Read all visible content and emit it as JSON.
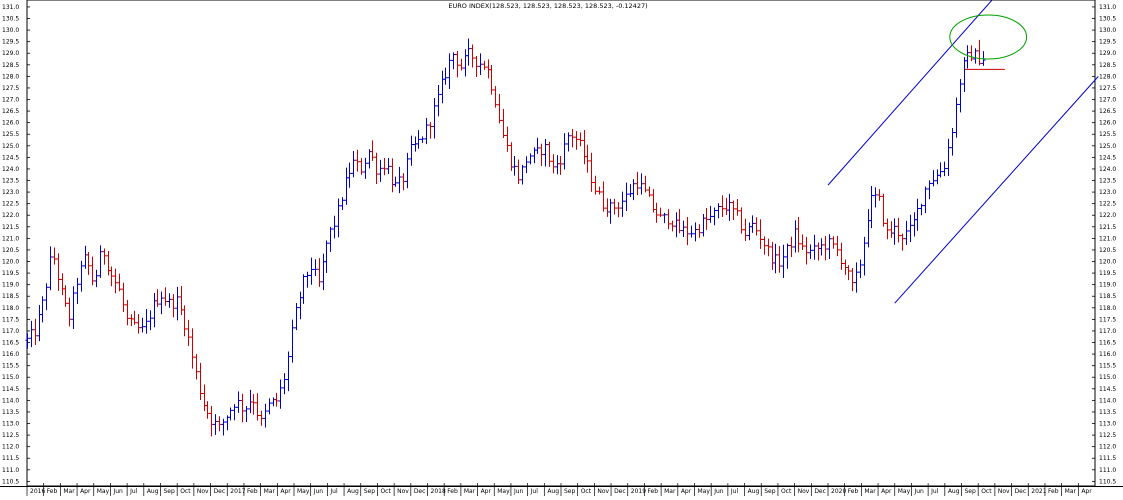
{
  "chart_data": {
    "type": "ohlc-bar",
    "title": "EURO INDEX(128.523, 128.523, 128.523, 128.523, -0.12427)",
    "xlabel": "",
    "ylabel": "",
    "ylim": [
      110.5,
      131.5
    ],
    "y_ticks": [
      110.5,
      111.0,
      111.5,
      112.0,
      112.5,
      113.0,
      113.5,
      114.0,
      114.5,
      115.0,
      115.5,
      116.0,
      116.5,
      117.0,
      117.5,
      118.0,
      118.5,
      119.0,
      119.5,
      120.0,
      120.5,
      121.0,
      121.5,
      122.0,
      122.5,
      123.0,
      123.5,
      124.0,
      124.5,
      125.0,
      125.5,
      126.0,
      126.5,
      127.0,
      127.5,
      128.0,
      128.5,
      129.0,
      129.5,
      130.0,
      130.5,
      131.0
    ],
    "y_tick_labels": [
      "110.5",
      "111.0",
      "111.5",
      "112.0",
      "112.5",
      "113.0",
      "113.5",
      "114.0",
      "114.5",
      "115.0",
      "115.5",
      "116.0",
      "116.5",
      "117.0",
      "117.5",
      "118.0",
      "118.5",
      "119.0",
      "119.5",
      "120.0",
      "120.5",
      "121.0",
      "121.5",
      "122.0",
      "122.5",
      "123.0",
      "123.5",
      "124.0",
      "124.5",
      "125.0",
      "125.5",
      "126.0",
      "126.5",
      "127.0",
      "127.5",
      "128.0",
      "128.5",
      "129.0",
      "129.5",
      "130.0",
      "130.5",
      "131.0"
    ],
    "x_tick_labels": [
      "2016",
      "Feb",
      "Mar",
      "Apr",
      "May",
      "Jun",
      "Jul",
      "Aug",
      "Sep",
      "Oct",
      "Nov",
      "Dec",
      "2017",
      "Feb",
      "Mar",
      "Apr",
      "May",
      "Jun",
      "Jul",
      "Aug",
      "Sep",
      "Oct",
      "Nov",
      "Dec",
      "2018",
      "Feb",
      "Mar",
      "Apr",
      "May",
      "Jun",
      "Jul",
      "Aug",
      "Sep",
      "Oct",
      "Nov",
      "Dec",
      "2019",
      "Feb",
      "Mar",
      "Apr",
      "May",
      "Jun",
      "Jul",
      "Aug",
      "Sep",
      "Oct",
      "Nov",
      "Dec",
      "2020",
      "Feb",
      "Mar",
      "Apr",
      "May",
      "Jun",
      "Jul",
      "Aug",
      "Sep",
      "Oct",
      "Nov",
      "Dec",
      "2021",
      "Feb",
      "Mar",
      "Apr"
    ],
    "x_range_months": [
      0,
      64
    ],
    "anchors": [
      [
        0.0,
        116.6
      ],
      [
        0.5,
        117.0
      ],
      [
        1.0,
        118.4
      ],
      [
        1.5,
        120.5
      ],
      [
        2.0,
        118.8
      ],
      [
        2.5,
        117.5
      ],
      [
        3.0,
        119.2
      ],
      [
        3.5,
        120.2
      ],
      [
        4.0,
        119.0
      ],
      [
        4.5,
        120.6
      ],
      [
        5.0,
        119.5
      ],
      [
        5.5,
        118.8
      ],
      [
        6.0,
        117.4
      ],
      [
        6.5,
        117.1
      ],
      [
        7.0,
        117.0
      ],
      [
        7.5,
        118.0
      ],
      [
        8.0,
        118.6
      ],
      [
        8.5,
        118.2
      ],
      [
        9.0,
        118.3
      ],
      [
        9.5,
        117.2
      ],
      [
        10.0,
        115.5
      ],
      [
        10.5,
        114.0
      ],
      [
        11.0,
        113.2
      ],
      [
        11.5,
        112.8
      ],
      [
        12.0,
        113.4
      ],
      [
        12.5,
        114.0
      ],
      [
        13.0,
        113.6
      ],
      [
        13.5,
        114.2
      ],
      [
        14.0,
        113.0
      ],
      [
        14.5,
        113.8
      ],
      [
        15.0,
        114.0
      ],
      [
        15.5,
        115.2
      ],
      [
        16.0,
        117.5
      ],
      [
        16.5,
        119.0
      ],
      [
        17.0,
        119.8
      ],
      [
        17.5,
        119.0
      ],
      [
        18.0,
        121.0
      ],
      [
        18.5,
        121.8
      ],
      [
        19.0,
        123.2
      ],
      [
        19.5,
        124.3
      ],
      [
        20.0,
        124.0
      ],
      [
        20.5,
        124.8
      ],
      [
        21.0,
        123.9
      ],
      [
        21.5,
        124.3
      ],
      [
        22.0,
        123.2
      ],
      [
        22.5,
        123.5
      ],
      [
        23.0,
        124.8
      ],
      [
        23.5,
        125.2
      ],
      [
        24.0,
        125.8
      ],
      [
        24.5,
        126.8
      ],
      [
        25.0,
        128.0
      ],
      [
        25.5,
        129.0
      ],
      [
        26.0,
        128.4
      ],
      [
        26.5,
        129.0
      ],
      [
        27.0,
        128.6
      ],
      [
        27.5,
        128.5
      ],
      [
        28.0,
        127.2
      ],
      [
        28.5,
        125.5
      ],
      [
        29.0,
        124.3
      ],
      [
        29.5,
        123.6
      ],
      [
        30.0,
        124.6
      ],
      [
        30.5,
        124.6
      ],
      [
        31.0,
        125.0
      ],
      [
        31.5,
        124.0
      ],
      [
        32.0,
        124.5
      ],
      [
        32.5,
        125.6
      ],
      [
        33.0,
        125.2
      ],
      [
        33.5,
        124.3
      ],
      [
        34.0,
        123.2
      ],
      [
        34.5,
        122.5
      ],
      [
        35.0,
        122.3
      ],
      [
        35.5,
        122.5
      ],
      [
        36.0,
        122.9
      ],
      [
        36.5,
        123.5
      ],
      [
        37.0,
        123.0
      ],
      [
        37.5,
        122.3
      ],
      [
        38.0,
        121.8
      ],
      [
        38.5,
        121.9
      ],
      [
        39.0,
        121.4
      ],
      [
        39.5,
        121.3
      ],
      [
        40.0,
        121.3
      ],
      [
        40.5,
        121.7
      ],
      [
        41.0,
        121.9
      ],
      [
        41.5,
        122.3
      ],
      [
        42.0,
        122.4
      ],
      [
        42.5,
        122.0
      ],
      [
        43.0,
        121.2
      ],
      [
        43.5,
        121.6
      ],
      [
        44.0,
        121.0
      ],
      [
        44.5,
        120.3
      ],
      [
        45.0,
        119.9
      ],
      [
        45.5,
        120.4
      ],
      [
        46.0,
        121.2
      ],
      [
        46.5,
        120.5
      ],
      [
        47.0,
        120.4
      ],
      [
        47.5,
        120.6
      ],
      [
        48.0,
        120.8
      ],
      [
        48.5,
        120.5
      ],
      [
        49.0,
        119.8
      ],
      [
        49.5,
        118.8
      ],
      [
        50.0,
        120.2
      ],
      [
        50.5,
        122.6
      ],
      [
        51.0,
        122.8
      ],
      [
        51.5,
        121.2
      ],
      [
        52.0,
        121.4
      ],
      [
        52.5,
        121.1
      ],
      [
        53.0,
        121.4
      ],
      [
        53.5,
        122.5
      ],
      [
        54.0,
        123.5
      ],
      [
        54.5,
        123.7
      ],
      [
        55.0,
        124.2
      ],
      [
        55.5,
        126.0
      ],
      [
        56.0,
        128.3
      ],
      [
        56.5,
        129.0
      ],
      [
        57.0,
        128.8
      ],
      [
        57.35,
        128.8
      ]
    ],
    "annotations": [
      {
        "type": "trendline",
        "from": [
          52.0,
          118.2
        ],
        "to": [
          64.2,
          128.0
        ],
        "color": "#0000cc"
      },
      {
        "type": "trendline",
        "from": [
          48.0,
          123.3
        ],
        "to": [
          58.2,
          131.6
        ],
        "color": "#0000cc"
      },
      {
        "type": "hline",
        "from": [
          56.2,
          128.3
        ],
        "to": [
          58.6,
          128.3
        ],
        "color": "#cc0000"
      },
      {
        "type": "ellipse",
        "center": [
          57.6,
          129.7
        ],
        "radius": [
          2.3,
          0.95
        ],
        "color": "#00a000"
      }
    ],
    "up_color": "#0000cc",
    "down_color": "#cc0000",
    "grid": false,
    "legend": "none"
  }
}
